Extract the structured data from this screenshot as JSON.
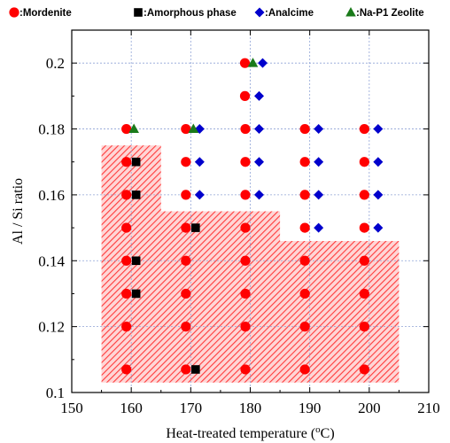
{
  "chart_data": {
    "type": "scatter",
    "title": "",
    "xlabel": "Heat-treated temperature (",
    "xlabel_sup": "o",
    "xlabel_unit": "C)",
    "ylabel": "Al / Si ratio",
    "xlim": [
      150,
      210
    ],
    "ylim": [
      0.1,
      0.21
    ],
    "xticks": [
      "150",
      "160",
      "170",
      "180",
      "190",
      "200",
      "210"
    ],
    "yticks": [
      "0.1",
      "0.12",
      "0.14",
      "0.16",
      "0.18",
      "0.2"
    ],
    "grid": true,
    "legend_position": "top",
    "legend": [
      {
        "name": ":Mordenite",
        "marker": "circle",
        "color": "#ff0000"
      },
      {
        "name": ":Amorphous phase",
        "marker": "square",
        "color": "#000000"
      },
      {
        "name": ":Analcime",
        "marker": "diamond",
        "color": "#0000cc"
      },
      {
        "name": ":Na-P1 Zeolite",
        "marker": "triangle",
        "color": "#1a7a1a"
      }
    ],
    "series": [
      {
        "name": "Mordenite",
        "marker": "circle",
        "color": "#ff0000",
        "points": [
          [
            160,
            0.107
          ],
          [
            160,
            0.12
          ],
          [
            160,
            0.13
          ],
          [
            160,
            0.14
          ],
          [
            160,
            0.15
          ],
          [
            160,
            0.16
          ],
          [
            160,
            0.17
          ],
          [
            160,
            0.18
          ],
          [
            170,
            0.107
          ],
          [
            170,
            0.12
          ],
          [
            170,
            0.13
          ],
          [
            170,
            0.14
          ],
          [
            170,
            0.15
          ],
          [
            170,
            0.16
          ],
          [
            170,
            0.17
          ],
          [
            170,
            0.18
          ],
          [
            180,
            0.107
          ],
          [
            180,
            0.12
          ],
          [
            180,
            0.13
          ],
          [
            180,
            0.14
          ],
          [
            180,
            0.15
          ],
          [
            180,
            0.16
          ],
          [
            180,
            0.17
          ],
          [
            180,
            0.18
          ],
          [
            180,
            0.19
          ],
          [
            180,
            0.2
          ],
          [
            190,
            0.107
          ],
          [
            190,
            0.12
          ],
          [
            190,
            0.13
          ],
          [
            190,
            0.14
          ],
          [
            190,
            0.15
          ],
          [
            190,
            0.16
          ],
          [
            190,
            0.17
          ],
          [
            190,
            0.18
          ],
          [
            200,
            0.107
          ],
          [
            200,
            0.12
          ],
          [
            200,
            0.13
          ],
          [
            200,
            0.14
          ],
          [
            200,
            0.15
          ],
          [
            200,
            0.16
          ],
          [
            200,
            0.17
          ],
          [
            200,
            0.18
          ]
        ]
      },
      {
        "name": "Amorphous phase",
        "marker": "square",
        "color": "#000000",
        "points": [
          [
            160,
            0.13
          ],
          [
            160,
            0.14
          ],
          [
            160,
            0.16
          ],
          [
            160,
            0.17
          ],
          [
            170,
            0.15
          ],
          [
            170,
            0.107
          ]
        ]
      },
      {
        "name": "Analcime",
        "marker": "diamond",
        "color": "#0000cc",
        "points": [
          [
            170,
            0.16
          ],
          [
            170,
            0.17
          ],
          [
            170,
            0.18
          ],
          [
            180,
            0.16
          ],
          [
            180,
            0.17
          ],
          [
            180,
            0.18
          ],
          [
            180,
            0.19
          ],
          [
            180,
            0.2
          ],
          [
            190,
            0.15
          ],
          [
            190,
            0.16
          ],
          [
            190,
            0.17
          ],
          [
            190,
            0.18
          ],
          [
            200,
            0.15
          ],
          [
            200,
            0.16
          ],
          [
            200,
            0.17
          ],
          [
            200,
            0.18
          ]
        ]
      },
      {
        "name": "Na-P1 Zeolite",
        "marker": "triangle",
        "color": "#1a7a1a",
        "points": [
          [
            160,
            0.18
          ],
          [
            170,
            0.18
          ],
          [
            180,
            0.2
          ]
        ]
      }
    ],
    "shaded_region": {
      "fill": "#ff6666",
      "polygon": [
        [
          155,
          0.103
        ],
        [
          155,
          0.175
        ],
        [
          165,
          0.175
        ],
        [
          165,
          0.155
        ],
        [
          185,
          0.155
        ],
        [
          185,
          0.146
        ],
        [
          205,
          0.146
        ],
        [
          205,
          0.103
        ]
      ]
    }
  }
}
